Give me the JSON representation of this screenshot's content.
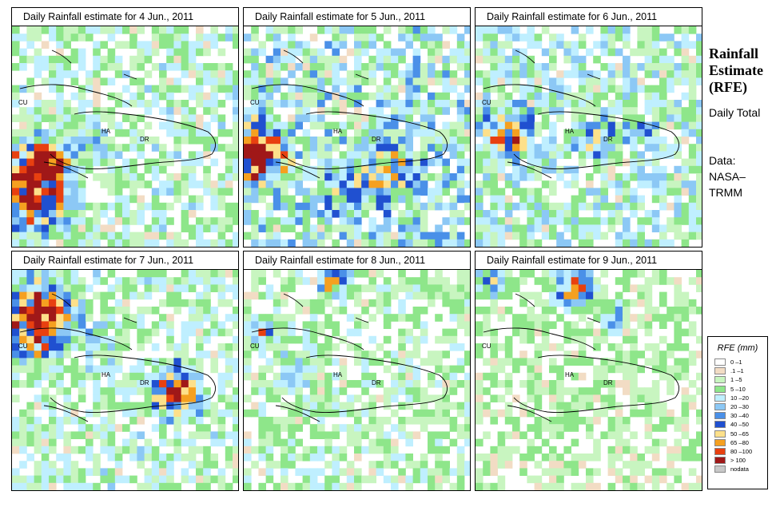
{
  "panels": [
    {
      "title": "Daily Rainfall estimate for  4 Jun., 2011"
    },
    {
      "title": "Daily Rainfall estimate for  5 Jun., 2011"
    },
    {
      "title": "Daily Rainfall estimate for  6 Jun., 2011"
    },
    {
      "title": "Daily Rainfall estimate for  7 Jun., 2011"
    },
    {
      "title": "Daily Rainfall estimate for  8 Jun., 2011"
    },
    {
      "title": "Daily Rainfall estimate for  9 Jun., 2011"
    }
  ],
  "map_labels": {
    "cuba": "CU",
    "haiti": "HA",
    "dr": "DR"
  },
  "side": {
    "title": "Rainfall Estimate (RFE)",
    "daily_total": "Daily Total",
    "data_source": "Data: NASA– TRMM"
  },
  "legend": {
    "title": "RFE (mm)",
    "items": [
      {
        "label": "0 –1",
        "color": "#ffffff"
      },
      {
        "label": ".1 –1",
        "color": "#f2dcc4"
      },
      {
        "label": "1 –5",
        "color": "#c8f5c0"
      },
      {
        "label": "5 –10",
        "color": "#8ee68a"
      },
      {
        "label": "10 –20",
        "color": "#bfefff"
      },
      {
        "label": "20 –30",
        "color": "#8cc8f5"
      },
      {
        "label": "30 –40",
        "color": "#4a90e8"
      },
      {
        "label": "40 –50",
        "color": "#2050d0"
      },
      {
        "label": "50 –65",
        "color": "#fde08a"
      },
      {
        "label": "65 –80",
        "color": "#f5a020"
      },
      {
        "label": "80 –100",
        "color": "#e84010"
      },
      {
        "label": "> 100",
        "color": "#a01818"
      },
      {
        "label": "nodata",
        "color": "#c8c8c8"
      }
    ]
  }
}
